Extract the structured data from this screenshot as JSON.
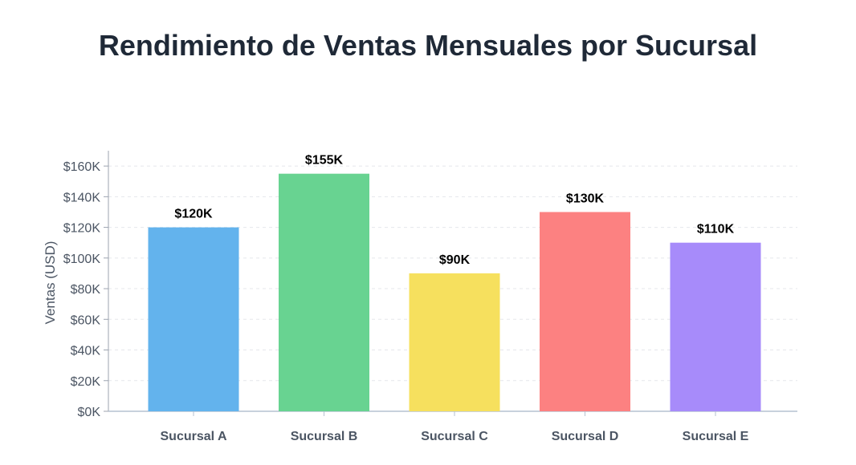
{
  "chart_data": {
    "type": "bar",
    "title": "Rendimiento de Ventas Mensuales por Sucursal",
    "xlabel": "",
    "ylabel": "Ventas (USD)",
    "categories": [
      "Sucursal A",
      "Sucursal B",
      "Sucursal C",
      "Sucursal D",
      "Sucursal E"
    ],
    "values": [
      120000,
      155000,
      90000,
      130000,
      110000
    ],
    "data_labels": [
      "$120K",
      "$155K",
      "$90K",
      "$130K",
      "$110K"
    ],
    "colors": [
      "#63b3ed",
      "#68d391",
      "#f6e05e",
      "#fc8181",
      "#a78bfa"
    ],
    "ylim": [
      0,
      170000
    ],
    "yticks": [
      0,
      20000,
      40000,
      60000,
      80000,
      100000,
      120000,
      140000,
      160000
    ],
    "ytick_labels": [
      "$0K",
      "$20K",
      "$40K",
      "$60K",
      "$80K",
      "$100K",
      "$120K",
      "$140K",
      "$160K"
    ],
    "grid": true,
    "legend": "none"
  }
}
